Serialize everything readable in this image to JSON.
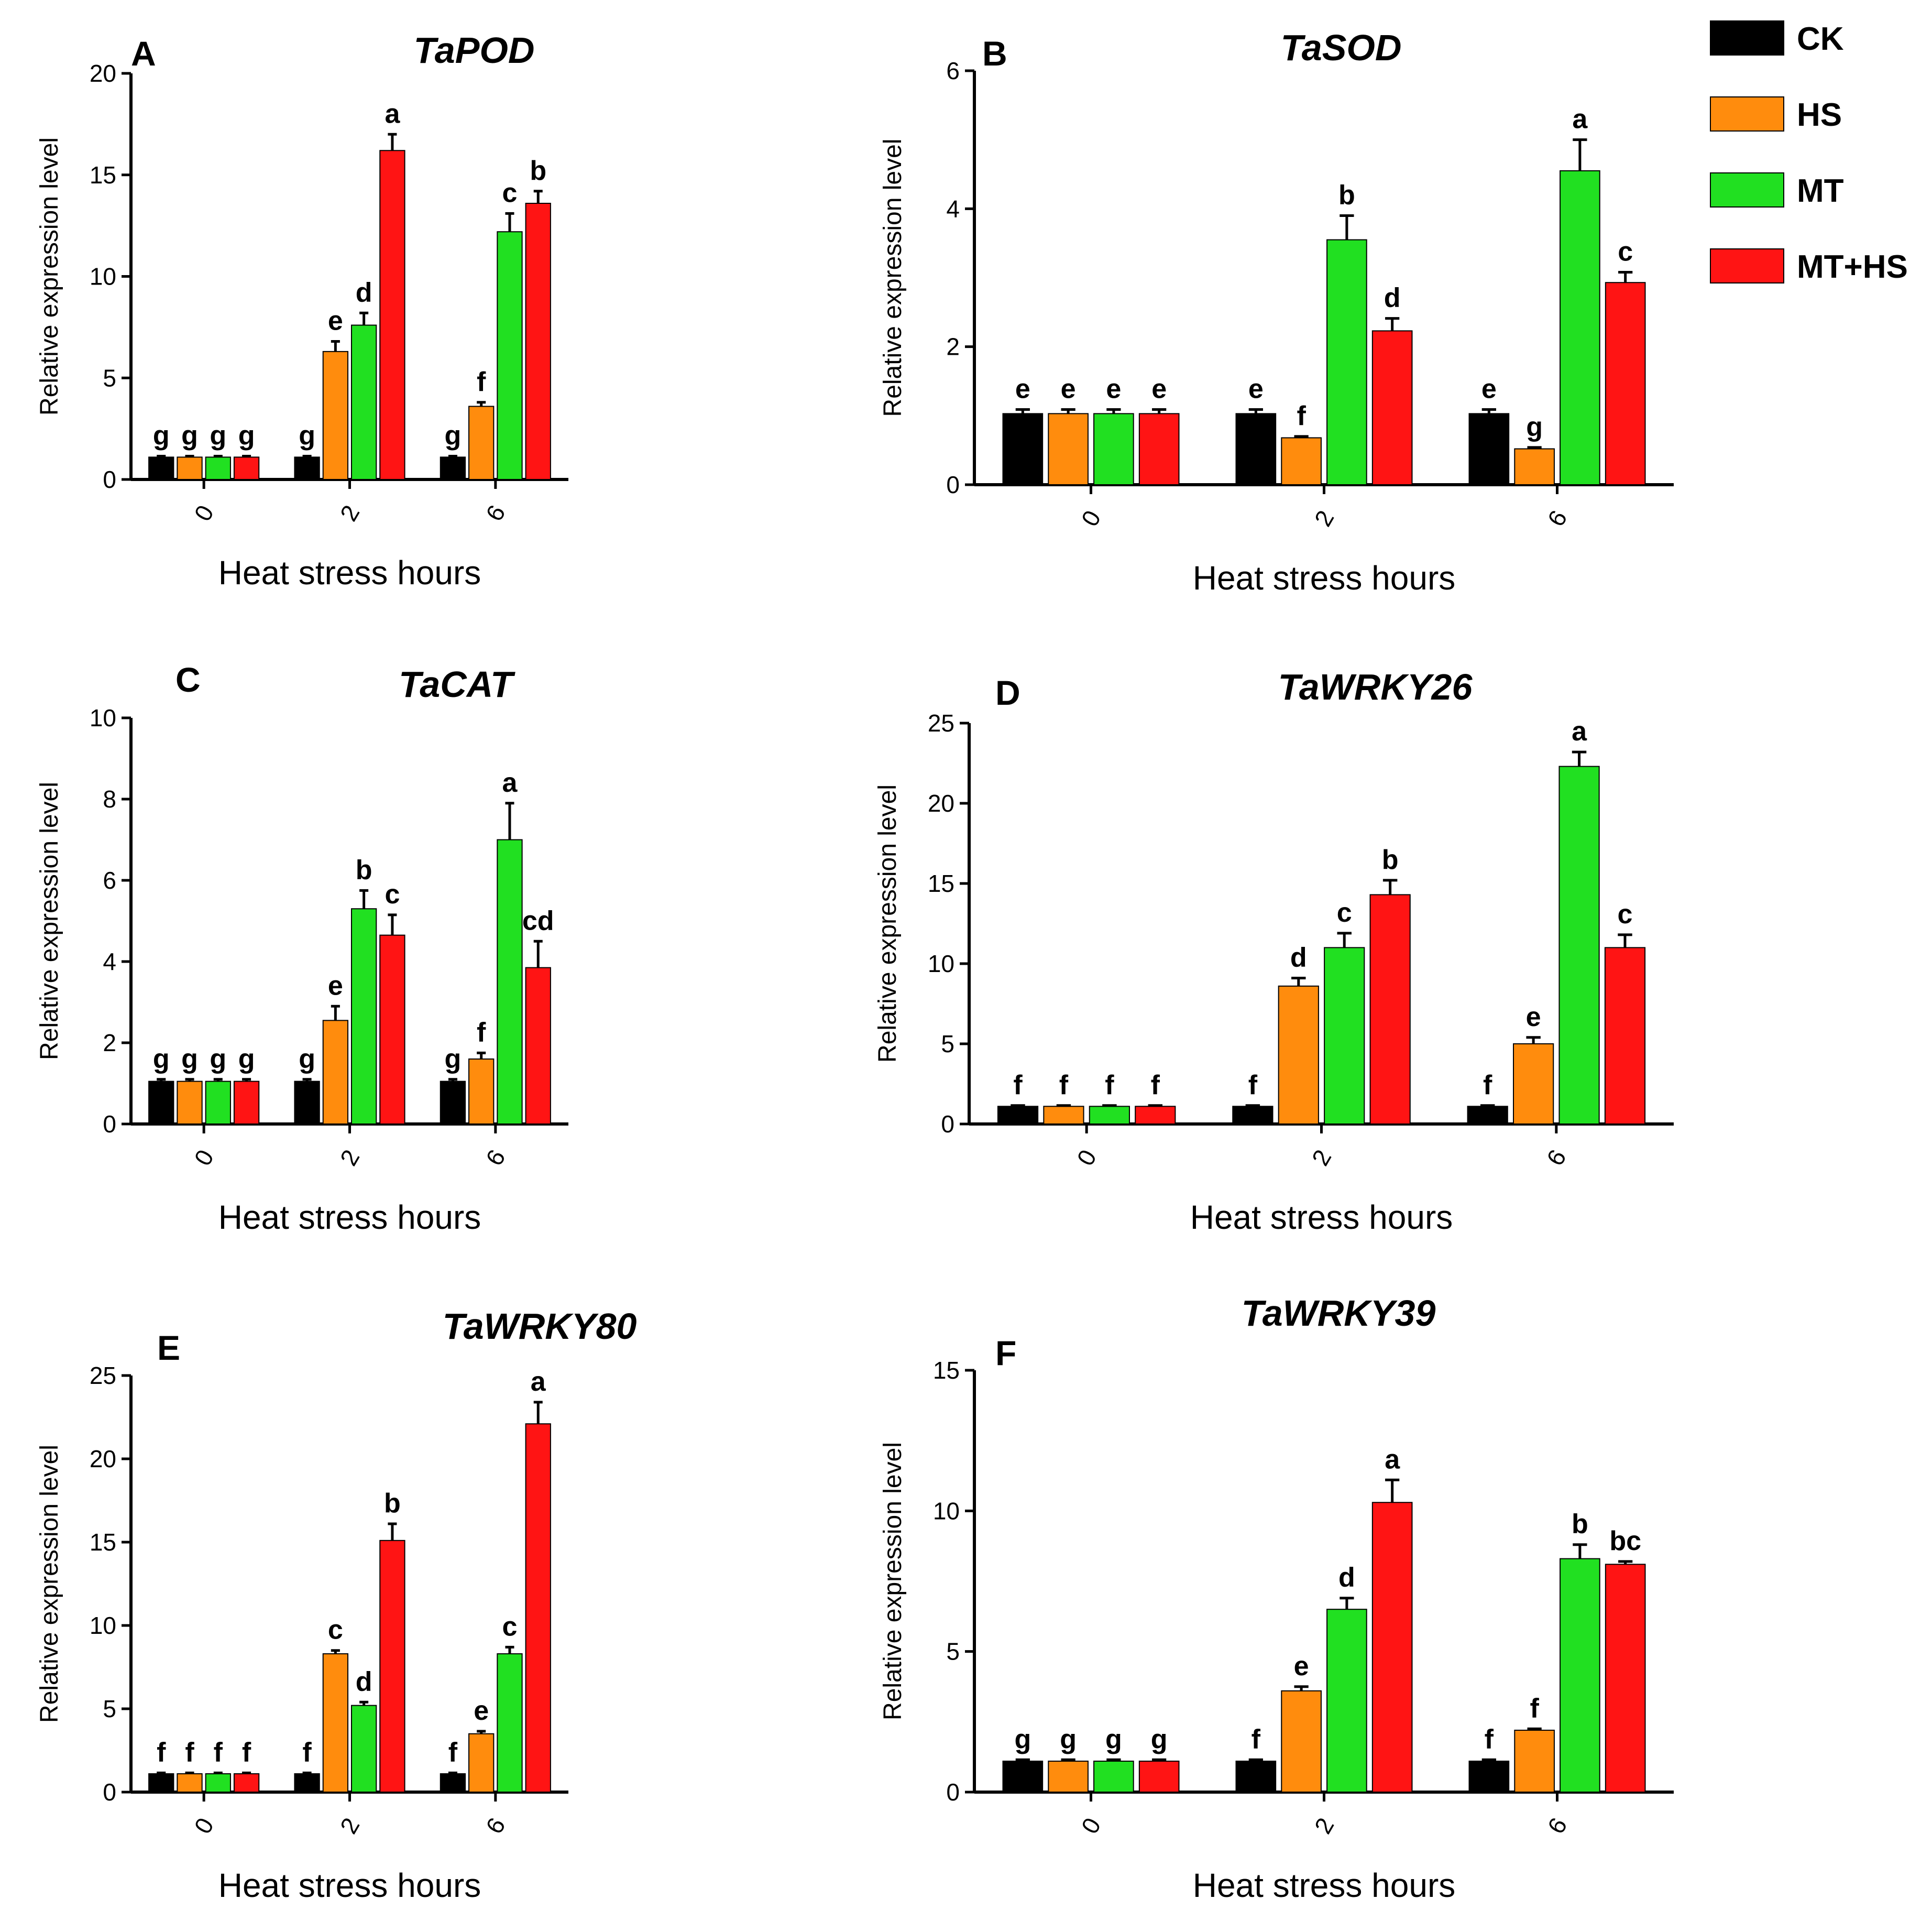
{
  "figure": {
    "legend_title": ""
  },
  "colors": {
    "CK": "#000000",
    "HS": "#ff8c0d",
    "MT": "#21e021",
    "MT+HS": "#ff1414"
  },
  "chart_data": [
    {
      "type": "bar",
      "panel": "A",
      "title": "TaPOD",
      "xlabel": "Heat stress hours",
      "ylabel": "Relative expression level",
      "categories": [
        "0",
        "2",
        "6"
      ],
      "ylim": [
        0,
        20
      ],
      "yticks": [
        0,
        5,
        10,
        15,
        20
      ],
      "series": [
        {
          "name": "CK",
          "values": [
            1.1,
            1.1,
            1.1
          ],
          "errors": [
            0.05,
            0.05,
            0.05
          ],
          "letters": [
            "g",
            "g",
            "g"
          ]
        },
        {
          "name": "HS",
          "values": [
            1.1,
            6.3,
            3.6
          ],
          "errors": [
            0.05,
            0.5,
            0.2
          ],
          "letters": [
            "g",
            "e",
            "f"
          ]
        },
        {
          "name": "MT",
          "values": [
            1.1,
            7.6,
            12.2
          ],
          "errors": [
            0.05,
            0.6,
            0.9
          ],
          "letters": [
            "g",
            "d",
            "c"
          ]
        },
        {
          "name": "MT+HS",
          "values": [
            1.1,
            16.2,
            13.6
          ],
          "errors": [
            0.05,
            0.8,
            0.6
          ],
          "letters": [
            "g",
            "a",
            "b"
          ]
        }
      ]
    },
    {
      "type": "bar",
      "panel": "B",
      "title": "TaSOD",
      "xlabel": "Heat stress hours",
      "ylabel": "Relative expression level",
      "categories": [
        "0",
        "2",
        "6"
      ],
      "ylim": [
        0,
        6
      ],
      "yticks": [
        0,
        2,
        4,
        6
      ],
      "series": [
        {
          "name": "CK",
          "values": [
            1.03,
            1.03,
            1.03
          ],
          "errors": [
            0.06,
            0.06,
            0.06
          ],
          "letters": [
            "e",
            "e",
            "e"
          ]
        },
        {
          "name": "HS",
          "values": [
            1.03,
            0.68,
            0.52
          ],
          "errors": [
            0.06,
            0.02,
            0.02
          ],
          "letters": [
            "e",
            "f",
            "g"
          ]
        },
        {
          "name": "MT",
          "values": [
            1.03,
            3.55,
            4.55
          ],
          "errors": [
            0.06,
            0.35,
            0.45
          ],
          "letters": [
            "e",
            "b",
            "a"
          ]
        },
        {
          "name": "MT+HS",
          "values": [
            1.03,
            2.23,
            2.93
          ],
          "errors": [
            0.06,
            0.18,
            0.15
          ],
          "letters": [
            "e",
            "d",
            "c"
          ]
        }
      ]
    },
    {
      "type": "bar",
      "panel": "C",
      "title": "TaCAT",
      "xlabel": "Heat stress hours",
      "ylabel": "Relative expression level",
      "categories": [
        "0",
        "2",
        "6"
      ],
      "ylim": [
        0,
        10
      ],
      "yticks": [
        0,
        2,
        4,
        6,
        8,
        10
      ],
      "series": [
        {
          "name": "CK",
          "values": [
            1.05,
            1.05,
            1.05
          ],
          "errors": [
            0.05,
            0.05,
            0.05
          ],
          "letters": [
            "g",
            "g",
            "g"
          ]
        },
        {
          "name": "HS",
          "values": [
            1.05,
            2.55,
            1.6
          ],
          "errors": [
            0.05,
            0.35,
            0.15
          ],
          "letters": [
            "g",
            "e",
            "f"
          ]
        },
        {
          "name": "MT",
          "values": [
            1.05,
            5.3,
            7.0
          ],
          "errors": [
            0.05,
            0.45,
            0.9
          ],
          "letters": [
            "g",
            "b",
            "a"
          ]
        },
        {
          "name": "MT+HS",
          "values": [
            1.05,
            4.65,
            3.85
          ],
          "errors": [
            0.05,
            0.5,
            0.65
          ],
          "letters": [
            "g",
            "c",
            "cd"
          ]
        }
      ]
    },
    {
      "type": "bar",
      "panel": "D",
      "title": "TaWRKY26",
      "xlabel": "Heat stress hours",
      "ylabel": "Relative expression level",
      "categories": [
        "0",
        "2",
        "6"
      ],
      "ylim": [
        0,
        25
      ],
      "yticks": [
        0,
        5,
        10,
        15,
        20,
        25
      ],
      "series": [
        {
          "name": "CK",
          "values": [
            1.1,
            1.1,
            1.1
          ],
          "errors": [
            0.05,
            0.05,
            0.05
          ],
          "letters": [
            "f",
            "f",
            "f"
          ]
        },
        {
          "name": "HS",
          "values": [
            1.1,
            8.6,
            5.0
          ],
          "errors": [
            0.05,
            0.5,
            0.4
          ],
          "letters": [
            "f",
            "d",
            "e"
          ]
        },
        {
          "name": "MT",
          "values": [
            1.1,
            11.0,
            22.3
          ],
          "errors": [
            0.05,
            0.9,
            0.9
          ],
          "letters": [
            "f",
            "c",
            "a"
          ]
        },
        {
          "name": "MT+HS",
          "values": [
            1.1,
            14.3,
            11.0
          ],
          "errors": [
            0.05,
            0.9,
            0.8
          ],
          "letters": [
            "f",
            "b",
            "c"
          ]
        }
      ]
    },
    {
      "type": "bar",
      "panel": "E",
      "title": "TaWRKY80",
      "xlabel": "Heat stress hours",
      "ylabel": "Relative expression level",
      "categories": [
        "0",
        "2",
        "6"
      ],
      "ylim": [
        0,
        25
      ],
      "yticks": [
        0,
        5,
        10,
        15,
        20,
        25
      ],
      "series": [
        {
          "name": "CK",
          "values": [
            1.1,
            1.1,
            1.1
          ],
          "errors": [
            0.05,
            0.05,
            0.05
          ],
          "letters": [
            "f",
            "f",
            "f"
          ]
        },
        {
          "name": "HS",
          "values": [
            1.1,
            8.3,
            3.5
          ],
          "errors": [
            0.05,
            0.2,
            0.15
          ],
          "letters": [
            "f",
            "c",
            "e"
          ]
        },
        {
          "name": "MT",
          "values": [
            1.1,
            5.2,
            8.3
          ],
          "errors": [
            0.05,
            0.2,
            0.4
          ],
          "letters": [
            "f",
            "d",
            "c"
          ]
        },
        {
          "name": "MT+HS",
          "values": [
            1.1,
            15.1,
            22.1
          ],
          "errors": [
            0.05,
            1.0,
            1.3
          ],
          "letters": [
            "f",
            "b",
            "a"
          ]
        }
      ]
    },
    {
      "type": "bar",
      "panel": "F",
      "title": "TaWRKY39",
      "xlabel": "Heat stress hours",
      "ylabel": "Relative expression level",
      "categories": [
        "0",
        "2",
        "6"
      ],
      "ylim": [
        0,
        15
      ],
      "yticks": [
        0,
        5,
        10,
        15
      ],
      "series": [
        {
          "name": "CK",
          "values": [
            1.1,
            1.1,
            1.1
          ],
          "errors": [
            0.05,
            0.05,
            0.05
          ],
          "letters": [
            "g",
            "f",
            "f"
          ]
        },
        {
          "name": "HS",
          "values": [
            1.1,
            3.6,
            2.2
          ],
          "errors": [
            0.05,
            0.15,
            0.05
          ],
          "letters": [
            "g",
            "e",
            "f"
          ]
        },
        {
          "name": "MT",
          "values": [
            1.1,
            6.5,
            8.3
          ],
          "errors": [
            0.05,
            0.4,
            0.5
          ],
          "letters": [
            "g",
            "d",
            "b"
          ]
        },
        {
          "name": "MT+HS",
          "values": [
            1.1,
            10.3,
            8.1
          ],
          "errors": [
            0.05,
            0.8,
            0.1
          ],
          "letters": [
            "g",
            "a",
            "bc"
          ]
        }
      ]
    }
  ],
  "legend": [
    {
      "name": "CK",
      "color": "#000000"
    },
    {
      "name": "HS",
      "color": "#ff8c0d"
    },
    {
      "name": "MT",
      "color": "#21e021"
    },
    {
      "name": "MT+HS",
      "color": "#ff1414"
    }
  ]
}
